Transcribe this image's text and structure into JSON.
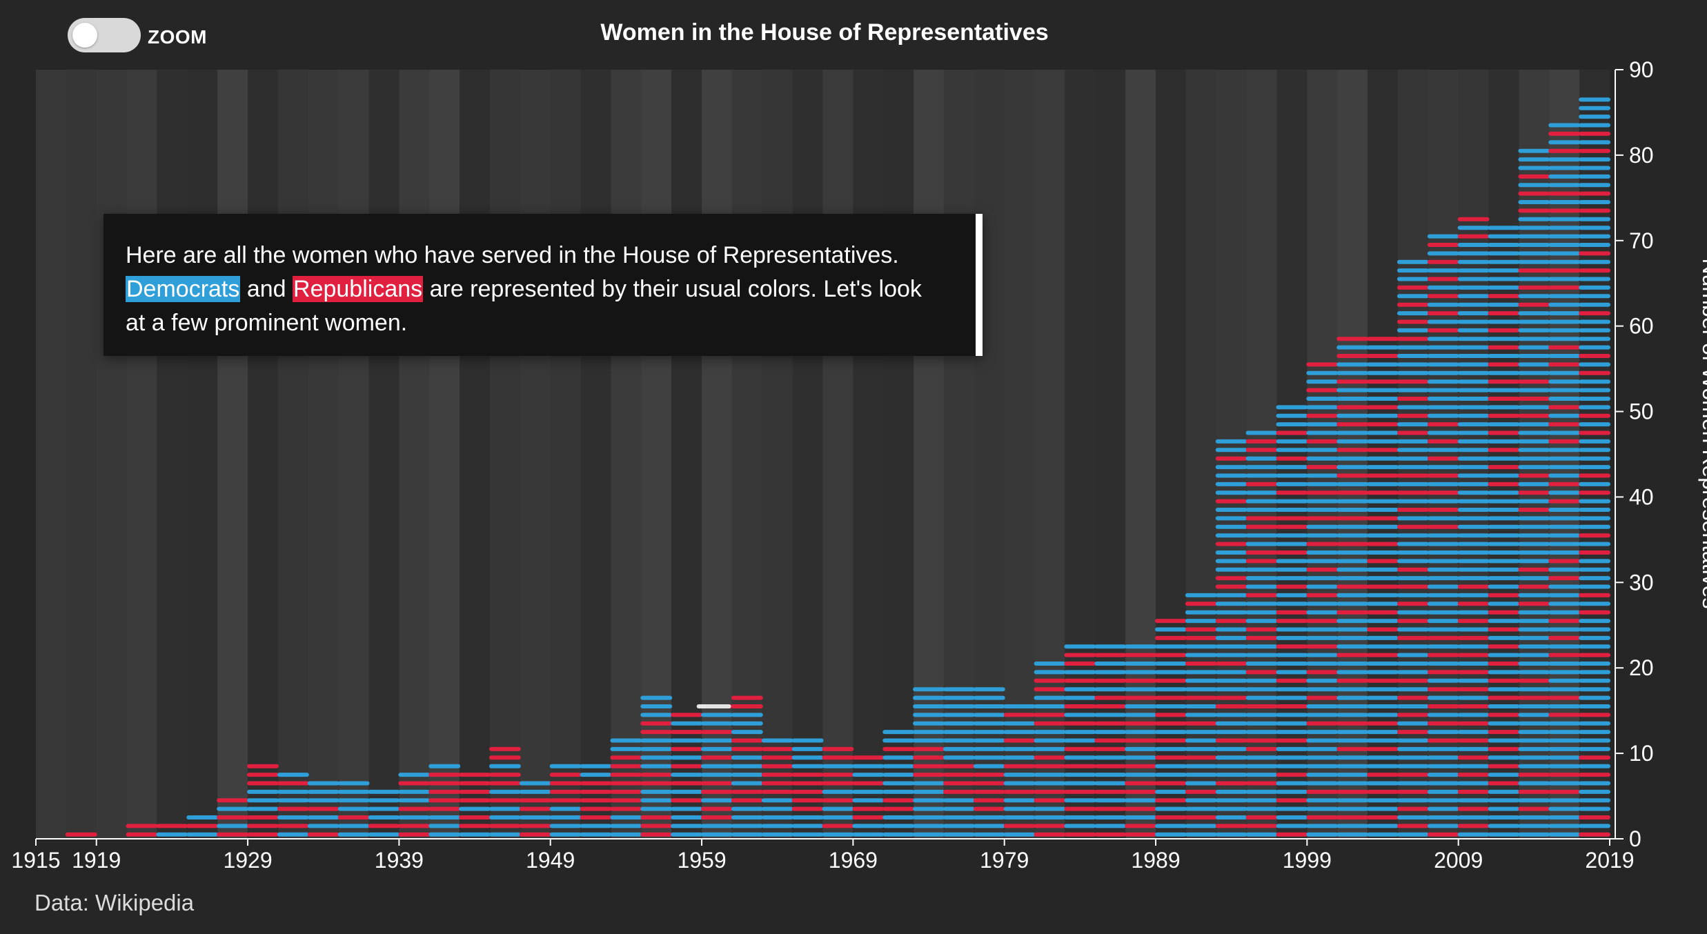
{
  "title": "Women in the House of Representatives",
  "toggle": {
    "label": "ZOOM",
    "state": "off"
  },
  "annotation": {
    "sentence1": "Here are all the women who have served in the House of Representatives.",
    "dem_word": "Democrats",
    "connector": "and",
    "rep_word": "Republicans",
    "sentence2": "are represented by their usual colors. Let's look at a few prominent women."
  },
  "source": "Data: Wikipedia",
  "colors": {
    "democrat": "#2e9fd8",
    "republican": "#e0203e",
    "highlight": "#e6e6e6",
    "background": "#262626"
  },
  "chart_data": {
    "type": "bar",
    "title": "Women in the House of Representatives",
    "xlabel": "",
    "ylabel": "Number of Women Representatives",
    "xlim": [
      1915,
      2019
    ],
    "ylim": [
      0,
      90
    ],
    "x_ticks": [
      "1915",
      "1919",
      "1929",
      "1939",
      "1949",
      "1959",
      "1969",
      "1979",
      "1989",
      "1999",
      "2009",
      "2019"
    ],
    "y_ticks": [
      "0",
      "10",
      "20",
      "30",
      "40",
      "50",
      "60",
      "70",
      "80",
      "90"
    ],
    "grid": false,
    "party_counts_by_congress": {
      "congress_start_years": [
        1917,
        1919,
        1921,
        1923,
        1925,
        1927,
        1929,
        1931,
        1933,
        1935,
        1937,
        1939,
        1941,
        1943,
        1945,
        1947,
        1949,
        1951,
        1953,
        1955,
        1957,
        1959,
        1961,
        1963,
        1965,
        1967,
        1969,
        1971,
        1973,
        1975,
        1977,
        1979,
        1981,
        1983,
        1985,
        1987,
        1989,
        1991,
        1993,
        1995,
        1997,
        1999,
        2001,
        2003,
        2005,
        2007,
        2009,
        2011,
        2013,
        2015,
        2017
      ],
      "series": [
        {
          "name": "Democrats",
          "values": [
            0,
            0,
            0,
            1,
            2,
            2,
            3,
            5,
            5,
            6,
            5,
            4,
            4,
            2,
            5,
            3,
            5,
            4,
            5,
            10,
            9,
            9,
            11,
            6,
            7,
            5,
            6,
            10,
            14,
            14,
            13,
            11,
            11,
            13,
            12,
            12,
            14,
            20,
            35,
            31,
            35,
            39,
            41,
            38,
            43,
            50,
            56,
            48,
            61,
            62,
            64
          ]
        },
        {
          "name": "Republicans",
          "values": [
            1,
            0,
            2,
            1,
            1,
            3,
            6,
            3,
            2,
            1,
            1,
            4,
            5,
            6,
            6,
            4,
            4,
            5,
            7,
            7,
            6,
            7,
            6,
            6,
            5,
            6,
            4,
            3,
            4,
            4,
            5,
            5,
            10,
            10,
            11,
            11,
            12,
            9,
            12,
            17,
            16,
            17,
            18,
            21,
            25,
            21,
            17,
            24,
            20,
            22,
            23
          ]
        }
      ]
    }
  }
}
